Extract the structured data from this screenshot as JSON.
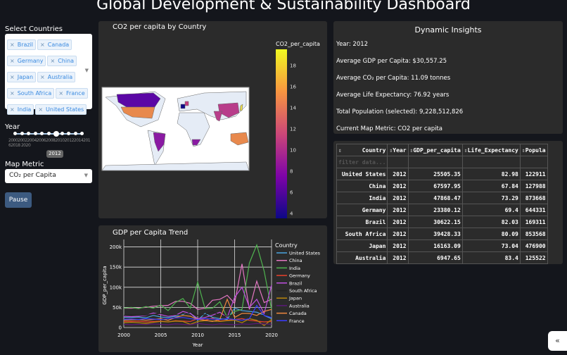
{
  "header": {
    "title": "Global Development & Sustainability Dashboard"
  },
  "sidebar": {
    "countries_label": "Select Countries",
    "selected_countries": [
      "Brazil",
      "Canada",
      "Germany",
      "China",
      "Japan",
      "Australia",
      "South Africa",
      "France",
      "India",
      "United States"
    ],
    "year_label": "Year",
    "year_value": "2012",
    "year_min": 2000,
    "year_max": 2020,
    "year_ticks": "2000200220042006200820102012201420162018 2020",
    "metric_label": "Map Metric",
    "metric_value": "CO₂ per Capita",
    "pause_label": "Pause"
  },
  "map": {
    "title": "CO2 per capita by Country",
    "colorbar_title": "CO2_per_capita",
    "colorbar_ticks": [
      "18",
      "16",
      "14",
      "12",
      "10",
      "8",
      "6",
      "4"
    ],
    "colors": {
      "United States": "#e8894d",
      "Canada": "#5b07a5",
      "Brazil": "#8a1aa3",
      "China": "#b83d8a",
      "India": "#b83d8a",
      "Australia": "#e8894d",
      "South Africa": "#8a1aa3",
      "Germany": "#c43e7f",
      "France": "#0d0887",
      "Japan": "#e8d94a"
    }
  },
  "insights": {
    "title": "Dynamic Insights",
    "lines": [
      "Year: 2012",
      "Average GDP per Capita: $30,557.25",
      "Average CO₂ per Capita: 11.09 tonnes",
      "Average Life Expectancy: 76.92 years",
      "Total Population (selected): 9,228,512,826",
      "Current Map Metric: CO2 per capita"
    ]
  },
  "table": {
    "columns": [
      "Country",
      "Year",
      "GDP_per_capita",
      "Life_Expectancy",
      "Popula"
    ],
    "filter_placeholder": "filter data...",
    "rows": [
      [
        "United States",
        "2012",
        "25505.35",
        "82.98",
        "122911"
      ],
      [
        "China",
        "2012",
        "67597.95",
        "67.84",
        "127988"
      ],
      [
        "India",
        "2012",
        "47868.47",
        "73.29",
        "873668"
      ],
      [
        "Germany",
        "2012",
        "23380.12",
        "69.4",
        "644331"
      ],
      [
        "Brazil",
        "2012",
        "30622.15",
        "82.03",
        "169311"
      ],
      [
        "South Africa",
        "2012",
        "39428.33",
        "80.09",
        "853568"
      ],
      [
        "Japan",
        "2012",
        "16163.09",
        "73.04",
        "476900"
      ],
      [
        "Australia",
        "2012",
        "6947.65",
        "83.4",
        "125522"
      ]
    ]
  },
  "chart_data": {
    "type": "line",
    "title": "GDP per Capita Trend",
    "xlabel": "Year",
    "ylabel": "GDP_per_capita",
    "legend_title": "Country",
    "legend_placement": "right",
    "xlim": [
      2000,
      2020
    ],
    "ylim": [
      0,
      215000
    ],
    "x_ticks": [
      "2000",
      "2005",
      "2010",
      "2015",
      "2020"
    ],
    "y_ticks": [
      "0",
      "50k",
      "100k",
      "150k",
      "200k"
    ],
    "x": [
      2000,
      2001,
      2002,
      2003,
      2004,
      2005,
      2006,
      2007,
      2008,
      2009,
      2010,
      2011,
      2012,
      2013,
      2014,
      2015,
      2016,
      2017,
      2018,
      2019,
      2020
    ],
    "series": [
      {
        "name": "United States",
        "color": "#4aa3df",
        "values": [
          25000,
          25000,
          26000,
          24000,
          30000,
          26000,
          25000,
          28000,
          32000,
          36000,
          18000,
          35000,
          25500,
          22000,
          20000,
          48000,
          42000,
          40000,
          38000,
          30000,
          22000
        ]
      },
      {
        "name": "China",
        "color": "#e377c2",
        "values": [
          48000,
          48000,
          49000,
          50000,
          53000,
          54000,
          55000,
          65000,
          65000,
          60000,
          45000,
          48000,
          67600,
          70000,
          80000,
          60000,
          158000,
          45000,
          115000,
          62000,
          70000
        ]
      },
      {
        "name": "India",
        "color": "#4fb34f",
        "values": [
          48000,
          50000,
          47000,
          52000,
          48000,
          56000,
          42000,
          62000,
          72000,
          48000,
          113000,
          47000,
          47900,
          64000,
          25000,
          40000,
          45000,
          160000,
          205000,
          140000,
          45000
        ]
      },
      {
        "name": "Germany",
        "color": "#e8402a",
        "values": [
          15000,
          15000,
          16000,
          14000,
          15000,
          16000,
          14000,
          17000,
          16000,
          15000,
          22000,
          18000,
          23400,
          16000,
          18000,
          20000,
          22000,
          18000,
          16000,
          14000,
          15000
        ]
      },
      {
        "name": "Brazil",
        "color": "#c04fe0",
        "values": [
          28000,
          27000,
          28000,
          30000,
          36000,
          32000,
          28000,
          30000,
          40000,
          35000,
          22000,
          25000,
          30600,
          38000,
          25000,
          75000,
          100000,
          50000,
          70000,
          35000,
          105000
        ]
      },
      {
        "name": "South Africa",
        "color": "#222222",
        "values": [
          30000,
          32000,
          30000,
          31000,
          33000,
          35000,
          30000,
          32000,
          30000,
          38000,
          30000,
          32000,
          39400,
          30000,
          28000,
          32000,
          30000,
          35000,
          32000,
          30000,
          28000
        ]
      },
      {
        "name": "Japan",
        "color": "#b8860b",
        "values": [
          12000,
          13000,
          12000,
          10000,
          13000,
          15000,
          14000,
          16000,
          15000,
          8000,
          15000,
          17000,
          16200,
          15000,
          17000,
          18000,
          12000,
          22000,
          18000,
          5000,
          20000
        ]
      },
      {
        "name": "Australia",
        "color": "#5c1a7a",
        "values": [
          8000,
          7000,
          8000,
          7500,
          9000,
          8000,
          7000,
          9000,
          8000,
          7000,
          10000,
          8000,
          6900,
          9000,
          8000,
          7000,
          9000,
          8000,
          10000,
          9000,
          8000
        ]
      },
      {
        "name": "Canada",
        "color": "#f0883e",
        "values": [
          18000,
          19000,
          20000,
          18000,
          20000,
          22000,
          18000,
          25000,
          30000,
          28000,
          20000,
          18000,
          15000,
          20000,
          70000,
          25000,
          35000,
          35000,
          30000,
          40000,
          45000
        ]
      },
      {
        "name": "France",
        "color": "#3b3bff",
        "values": [
          20000,
          21000,
          20000,
          22000,
          21000,
          20000,
          22000,
          24000,
          25000,
          22000,
          20000,
          22000,
          21000,
          20000,
          22000,
          20000,
          18000,
          22000,
          55000,
          30000,
          25000
        ]
      }
    ]
  }
}
